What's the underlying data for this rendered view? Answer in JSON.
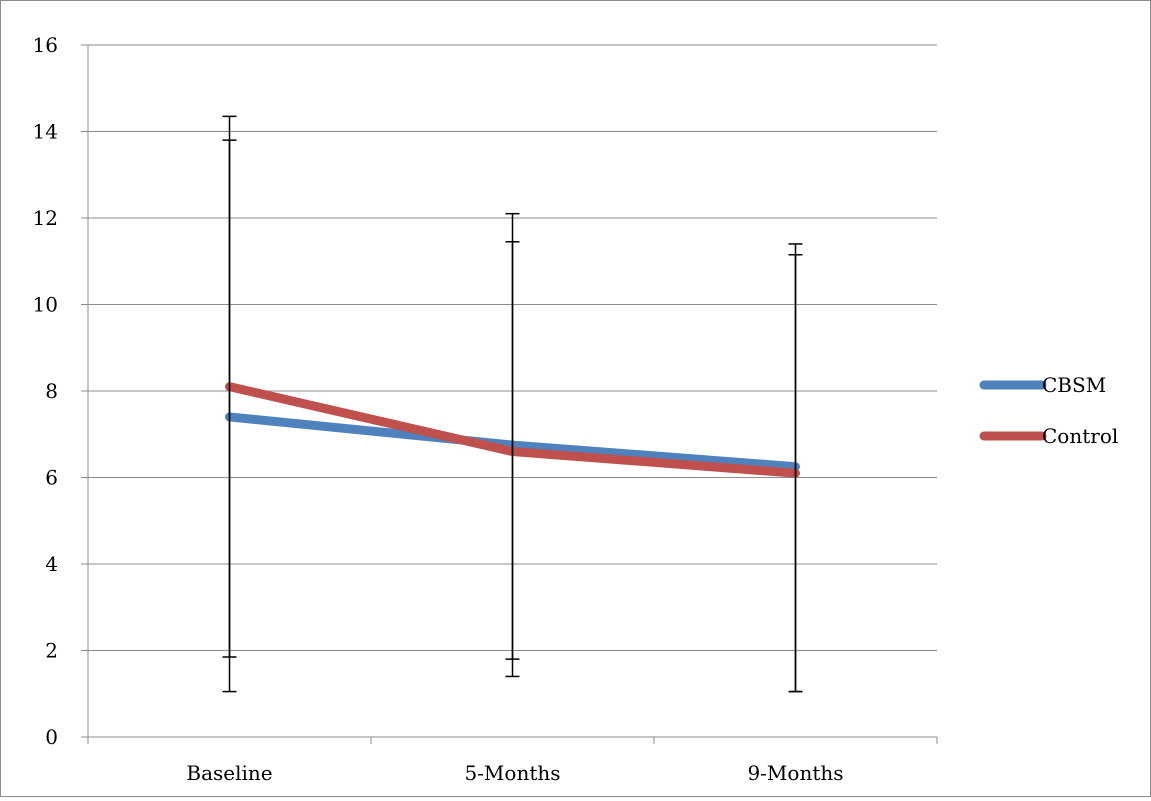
{
  "chart_data": {
    "type": "line",
    "title": "",
    "xlabel": "",
    "ylabel": "",
    "categories": [
      "Baseline",
      "5-Months",
      "9-Months"
    ],
    "ylim": [
      0,
      16
    ],
    "yticks": [
      "0",
      "2",
      "4",
      "6",
      "8",
      "10",
      "12",
      "14",
      "16"
    ],
    "grid": true,
    "legend_position": "right",
    "series": [
      {
        "name": "CBSM",
        "color": "#4f81bd",
        "values": [
          7.4,
          6.75,
          6.25
        ],
        "error_low": [
          1.05,
          1.4,
          1.05
        ],
        "error_high": [
          13.8,
          12.1,
          11.4
        ]
      },
      {
        "name": "Control",
        "color": "#c0504d",
        "values": [
          8.1,
          6.6,
          6.1
        ],
        "error_low": [
          1.85,
          1.8,
          1.05
        ],
        "error_high": [
          14.35,
          11.45,
          11.15
        ]
      }
    ]
  }
}
